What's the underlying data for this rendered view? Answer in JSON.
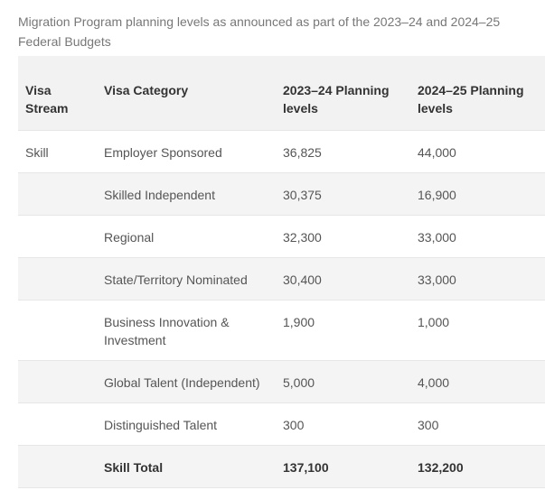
{
  "caption": "Migration Program planning levels as announced as part of the 2023–24 and 2024–25 Federal Budgets",
  "table": {
    "headers": {
      "stream": "Visa Stream",
      "category": "Visa Category",
      "y2023": "2023–24 Planning levels",
      "y2024": "2024–25 Planning levels"
    },
    "rows": [
      {
        "stream": "Skill",
        "category": "Employer Sponsored",
        "y2023": "36,825",
        "y2024": "44,000"
      },
      {
        "stream": "",
        "category": "Skilled Independent",
        "y2023": "30,375",
        "y2024": "16,900"
      },
      {
        "stream": "",
        "category": "Regional",
        "y2023": "32,300",
        "y2024": "33,000"
      },
      {
        "stream": "",
        "category": "State/Territory Nominated",
        "y2023": "30,400",
        "y2024": "33,000"
      },
      {
        "stream": "",
        "category": "Business Innovation & Investment",
        "y2023": "1,900",
        "y2024": "1,000"
      },
      {
        "stream": "",
        "category": "Global Talent (Independent)",
        "y2023": "5,000",
        "y2024": "4,000"
      },
      {
        "stream": "",
        "category": "Distinguished Talent",
        "y2023": "300",
        "y2024": "300"
      },
      {
        "stream": "",
        "category": "Skill Total",
        "y2023": "137,100",
        "y2024": "132,200"
      }
    ]
  }
}
